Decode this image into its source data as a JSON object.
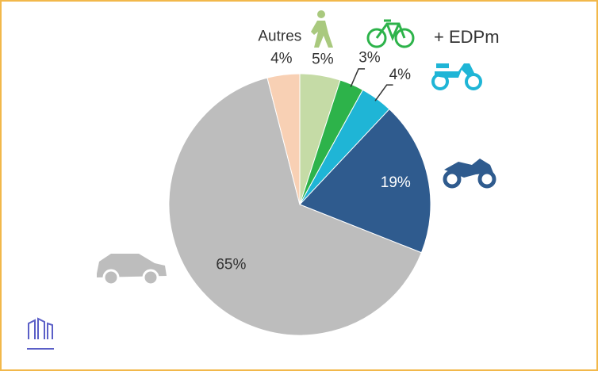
{
  "chart_data": {
    "type": "pie",
    "categories": [
      null,
      "+ EDPm",
      null,
      null,
      null,
      "Autres"
    ],
    "values": [
      5,
      3,
      4,
      19,
      65,
      4
    ],
    "value_labels": [
      "5%",
      "3%",
      "4%",
      "19%",
      "65%",
      "4%"
    ],
    "colors": [
      "#c5dba6",
      "#2db34a",
      "#1fb5d6",
      "#2f5b8e",
      "#bdbdbd",
      "#f8d0b4"
    ]
  }
}
